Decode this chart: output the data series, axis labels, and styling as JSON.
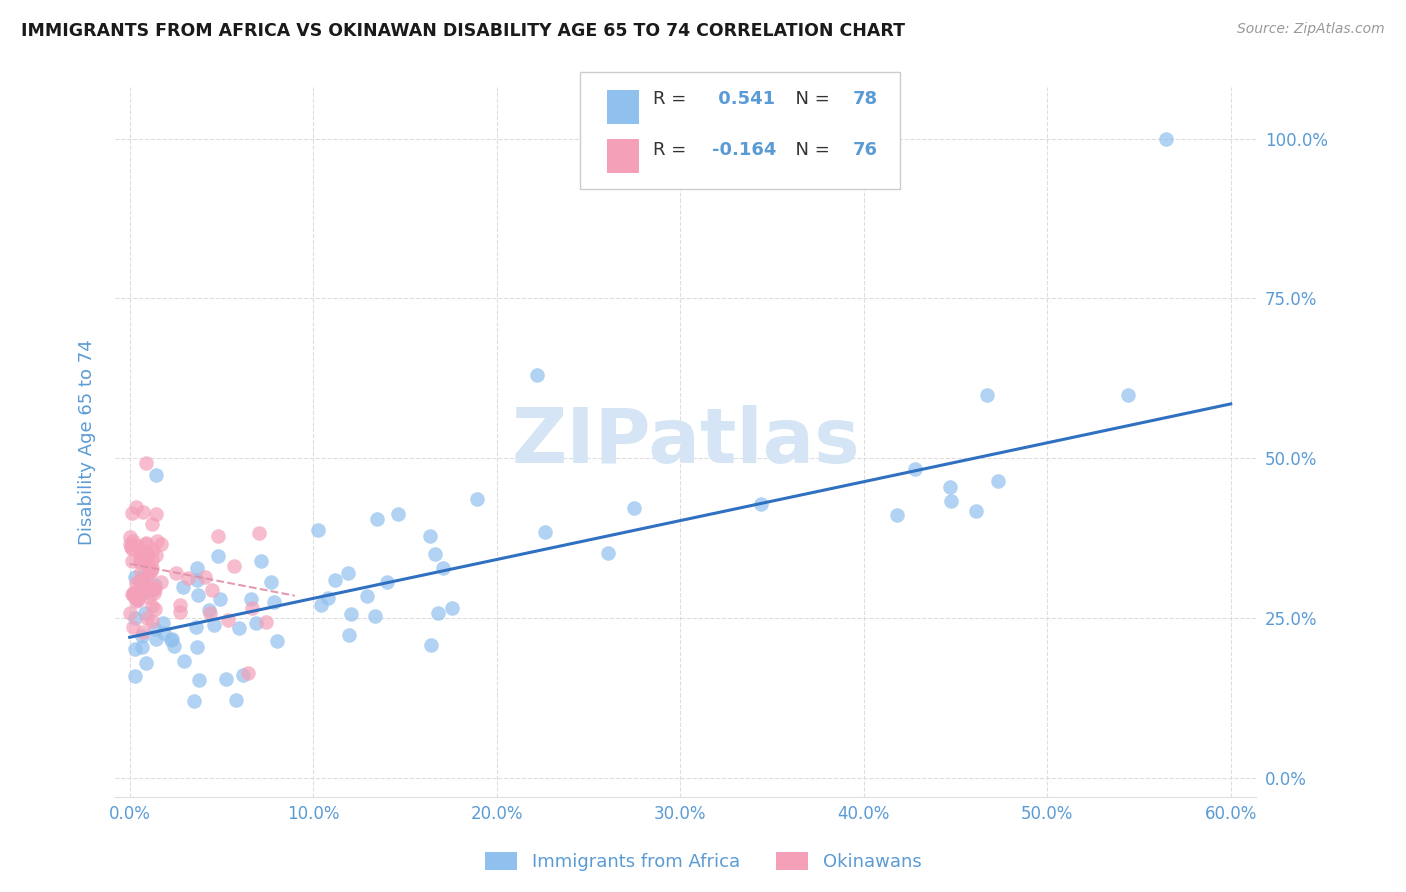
{
  "title": "IMMIGRANTS FROM AFRICA VS OKINAWAN DISABILITY AGE 65 TO 74 CORRELATION CHART",
  "source": "Source: ZipAtlas.com",
  "ylabel_label": "Disability Age 65 to 74",
  "legend_label1": "Immigrants from Africa",
  "legend_label2": "Okinawans",
  "r1": 0.541,
  "n1": 78,
  "r2": -0.164,
  "n2": 76,
  "blue_color": "#90C0EE",
  "pink_color": "#F4A0B8",
  "trend_blue": "#3070C0",
  "trend_pink": "#E090A8",
  "watermark_color": "#D5E5F5",
  "axis_label_color": "#5B9BD5",
  "tick_color": "#5B9BD5",
  "grid_color": "#DDDDDD",
  "title_fontsize": 12.5,
  "source_color": "#999999",
  "xlim": [
    0.0,
    0.6
  ],
  "ylim": [
    0.0,
    1.05
  ],
  "x_ticks": [
    0.0,
    0.1,
    0.2,
    0.3,
    0.4,
    0.5,
    0.6
  ],
  "x_tick_labels": [
    "0.0%",
    "10.0%",
    "20.0%",
    "30.0%",
    "40.0%",
    "50.0%",
    "60.0%"
  ],
  "y_ticks": [
    0.0,
    0.25,
    0.5,
    0.75,
    1.0
  ],
  "y_tick_labels": [
    "0.0%",
    "25.0%",
    "50.0%",
    "75.0%",
    "100.0%"
  ],
  "blue_trend_x0": 0.0,
  "blue_trend_y0": 0.22,
  "blue_trend_x1": 0.6,
  "blue_trend_y1": 0.585,
  "pink_trend_x0": 0.0,
  "pink_trend_y0": 0.335,
  "pink_trend_x1": 0.09,
  "pink_trend_y1": 0.285
}
